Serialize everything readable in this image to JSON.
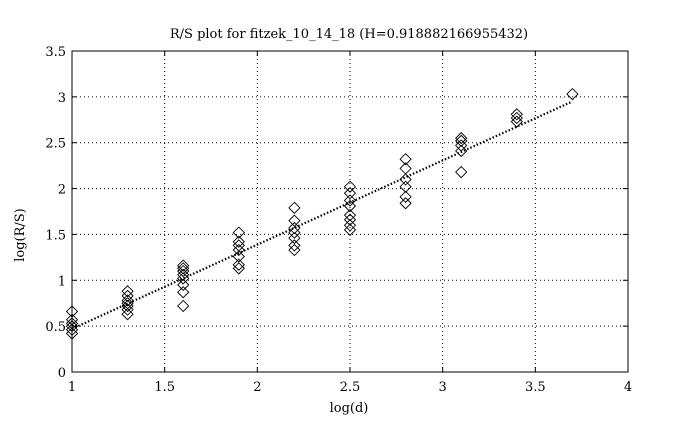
{
  "chart_data": {
    "type": "scatter",
    "title": "R/S plot for fitzek_10_14_18 (H=0.918882166955432)",
    "xlabel": "log(d)",
    "ylabel": "log(R/S)",
    "xlim": [
      1,
      4
    ],
    "ylim": [
      0,
      3.5
    ],
    "xticks": [
      1,
      1.5,
      2,
      2.5,
      3,
      3.5,
      4
    ],
    "yticks": [
      0,
      0.5,
      1,
      1.5,
      2,
      2.5,
      3,
      3.5
    ],
    "xtick_labels": [
      "1",
      "1.5",
      "2",
      "2.5",
      "3",
      "3.5",
      "4"
    ],
    "ytick_labels": [
      "0",
      "0.5",
      "1",
      "1.5",
      "2",
      "2.5",
      "3",
      "3.5"
    ],
    "grid": true,
    "marker": "diamond",
    "points": [
      [
        1.0,
        0.42
      ],
      [
        1.0,
        0.46
      ],
      [
        1.0,
        0.5
      ],
      [
        1.0,
        0.53
      ],
      [
        1.0,
        0.57
      ],
      [
        1.0,
        0.66
      ],
      [
        1.3,
        0.63
      ],
      [
        1.3,
        0.68
      ],
      [
        1.3,
        0.72
      ],
      [
        1.3,
        0.75
      ],
      [
        1.3,
        0.78
      ],
      [
        1.3,
        0.83
      ],
      [
        1.3,
        0.88
      ],
      [
        1.6,
        0.72
      ],
      [
        1.6,
        0.87
      ],
      [
        1.6,
        0.95
      ],
      [
        1.6,
        1.02
      ],
      [
        1.6,
        1.06
      ],
      [
        1.6,
        1.1
      ],
      [
        1.6,
        1.13
      ],
      [
        1.6,
        1.16
      ],
      [
        1.9,
        1.13
      ],
      [
        1.9,
        1.17
      ],
      [
        1.9,
        1.26
      ],
      [
        1.9,
        1.33
      ],
      [
        1.9,
        1.38
      ],
      [
        1.9,
        1.42
      ],
      [
        1.9,
        1.52
      ],
      [
        2.2,
        1.33
      ],
      [
        2.2,
        1.38
      ],
      [
        2.2,
        1.46
      ],
      [
        2.2,
        1.52
      ],
      [
        2.2,
        1.57
      ],
      [
        2.2,
        1.65
      ],
      [
        2.2,
        1.79
      ],
      [
        2.5,
        1.55
      ],
      [
        2.5,
        1.6
      ],
      [
        2.5,
        1.66
      ],
      [
        2.5,
        1.71
      ],
      [
        2.5,
        1.81
      ],
      [
        2.5,
        1.87
      ],
      [
        2.5,
        1.95
      ],
      [
        2.5,
        2.02
      ],
      [
        2.8,
        1.84
      ],
      [
        2.8,
        1.91
      ],
      [
        2.8,
        2.02
      ],
      [
        2.8,
        2.1
      ],
      [
        2.8,
        2.22
      ],
      [
        2.8,
        2.32
      ],
      [
        3.1,
        2.18
      ],
      [
        3.1,
        2.41
      ],
      [
        3.1,
        2.47
      ],
      [
        3.1,
        2.52
      ],
      [
        3.1,
        2.55
      ],
      [
        3.4,
        2.73
      ],
      [
        3.4,
        2.77
      ],
      [
        3.4,
        2.81
      ],
      [
        3.7,
        3.03
      ]
    ],
    "fit_line": {
      "style": "dotted",
      "x": [
        1.0,
        3.7
      ],
      "y": [
        0.47,
        2.95
      ]
    }
  }
}
